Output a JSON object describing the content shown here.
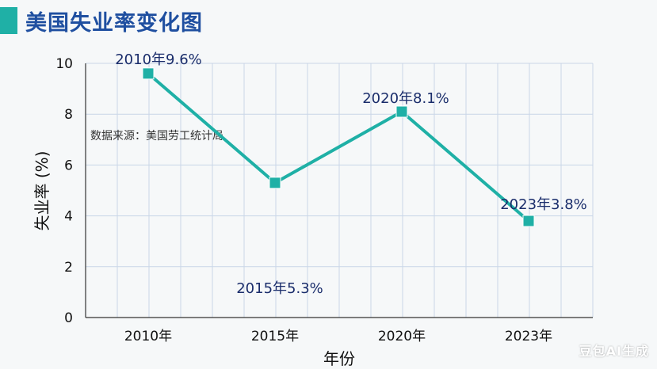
{
  "header": {
    "title": "美国失业率变化图"
  },
  "colors": {
    "accent": "#1fb0a6",
    "title": "#1f4fa0",
    "label": "#1a2d6b",
    "grid": "#c9d6e8"
  },
  "source_note": "数据来源：美国劳工统计局",
  "watermark": "豆包AI生成",
  "chart_data": {
    "type": "line",
    "title": "美国失业率变化图",
    "xlabel": "年份",
    "ylabel": "失业率 (%)",
    "categories": [
      "2010年",
      "2015年",
      "2020年",
      "2023年"
    ],
    "values": [
      9.6,
      5.3,
      8.1,
      3.8
    ],
    "data_labels": [
      "2010年9.6%",
      "2015年5.3%",
      "2020年8.1%",
      "2023年3.8%"
    ],
    "ylim": [
      0,
      10
    ],
    "yticks": [
      0,
      2,
      4,
      6,
      8,
      10
    ],
    "grid": true
  }
}
